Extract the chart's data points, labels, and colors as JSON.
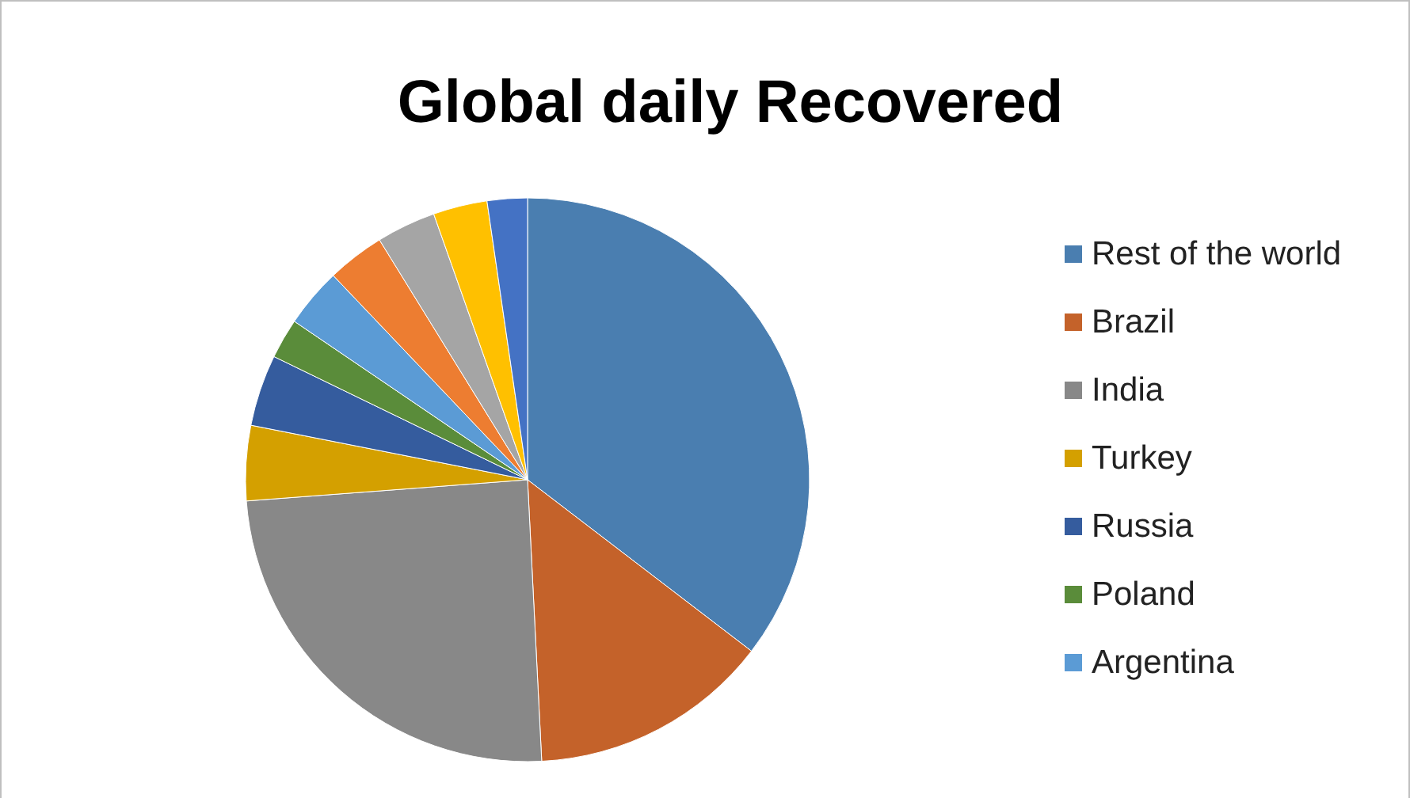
{
  "chart_data": {
    "type": "pie",
    "title": "Global daily Recovered",
    "categories": [
      "Rest of the world",
      "Brazil",
      "India",
      "Turkey",
      "Russia",
      "Poland",
      "Argentina",
      null,
      null,
      null,
      null
    ],
    "values": [
      35.4,
      13.8,
      24.6,
      4.3,
      4.1,
      2.3,
      3.4,
      3.3,
      3.4,
      3.1,
      2.3
    ],
    "colors": [
      "#4a7eb0",
      "#c4622a",
      "#888888",
      "#d4a000",
      "#355c9e",
      "#5a8c3a",
      "#5b9bd5",
      "#ed7d31",
      "#a5a5a5",
      "#ffc000",
      "#4472c4"
    ],
    "legend": "right"
  }
}
